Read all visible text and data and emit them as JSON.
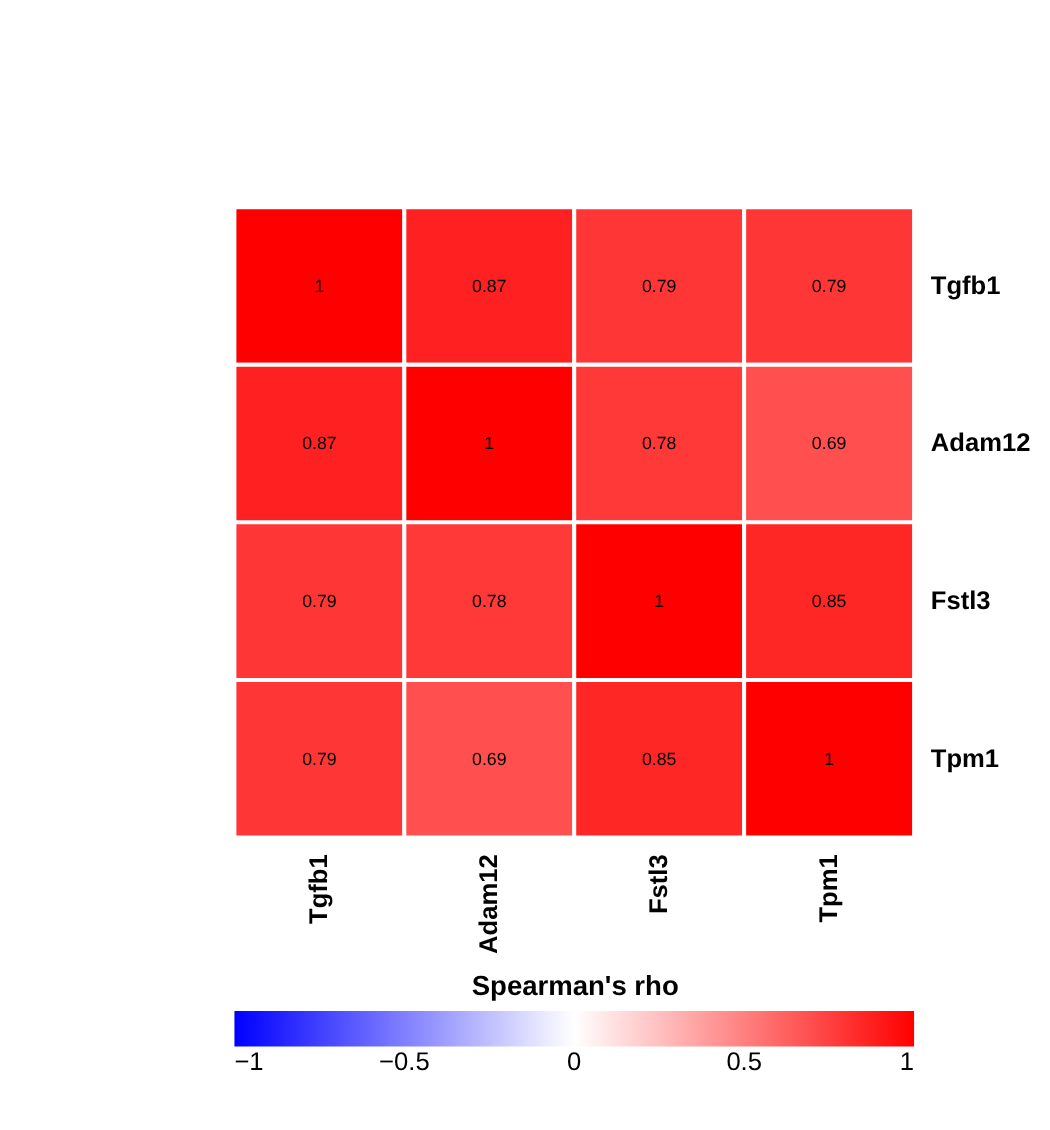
{
  "chart_data": {
    "type": "heatmap",
    "categories": [
      "Tgfb1",
      "Adam12",
      "Fstl3",
      "Tpm1"
    ],
    "y_categories": [
      "Tgfb1",
      "Adam12",
      "Fstl3",
      "Tpm1"
    ],
    "cells": [
      [
        1,
        0.87,
        0.79,
        0.79
      ],
      [
        0.87,
        1,
        0.78,
        0.69
      ],
      [
        0.79,
        0.78,
        1,
        0.85
      ],
      [
        0.79,
        0.69,
        0.85,
        1
      ]
    ],
    "data_labels": true,
    "clabel": "Spearman's rho",
    "clim": [
      -1,
      1
    ],
    "cticks": [
      -1,
      -0.5,
      0,
      0.5,
      1
    ]
  }
}
